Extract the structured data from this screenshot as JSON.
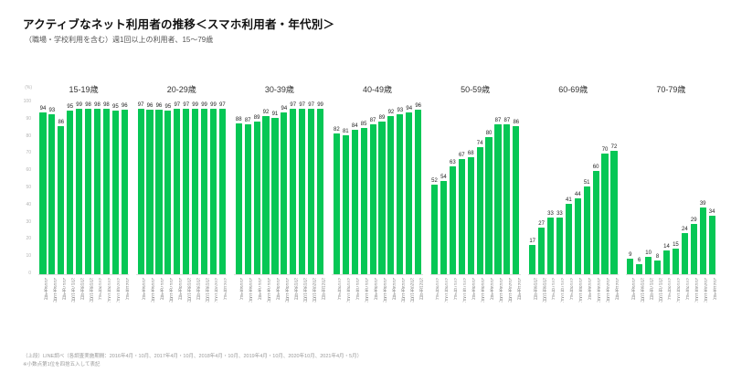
{
  "page": {
    "title": "アクティブなネット利用者の推移＜スマホ利用者・年代別＞",
    "subtitle": "（職場・学校利用を含む）週1回以上の利用者、15〜79歳",
    "footnote1": "（上段）LINE調べ（各調査実施期間：2016年4月・10月、2017年4月・10月、2018年4月・10月、2019年4月・10月、2020年10月、2021年4月・5月）",
    "footnote2": "※小数点第1位を四捨五入して表記"
  },
  "chart_data": {
    "type": "bar",
    "title": "アクティブなネット利用者の推移＜スマホ利用者・年代別＞",
    "subtitle": "（職場・学校利用を含む）週1回以上の利用者、15〜79歳",
    "unit_label": "(%)",
    "bar_color": "#06c755",
    "ylim": [
      0,
      100
    ],
    "yticks": [
      0,
      10,
      20,
      30,
      40,
      50,
      60,
      70,
      80,
      90,
      100
    ],
    "grid": false,
    "legend": "none",
    "x": [
      "2016年4月",
      "2016年10月",
      "2017年4月",
      "2017年10月",
      "2018年4月",
      "2018年10月",
      "2019年4月",
      "2019年10月",
      "2020年10月",
      "2021年4月"
    ],
    "groups": [
      {
        "label": "15-19歳",
        "values": [
          94,
          93,
          86,
          95,
          99,
          98,
          98,
          98,
          95,
          96
        ]
      },
      {
        "label": "20-29歳",
        "values": [
          97,
          96,
          96,
          95,
          97,
          97,
          99,
          99,
          99,
          97
        ]
      },
      {
        "label": "30-39歳",
        "values": [
          88,
          87,
          89,
          92,
          91,
          94,
          97,
          97,
          97,
          99
        ]
      },
      {
        "label": "40-49歳",
        "values": [
          82,
          81,
          84,
          85,
          87,
          89,
          92,
          93,
          94,
          96
        ]
      },
      {
        "label": "50-59歳",
        "values": [
          52,
          54,
          63,
          67,
          68,
          74,
          80,
          87,
          87,
          86
        ]
      },
      {
        "label": "60-69歳",
        "values": [
          17,
          27,
          33,
          33,
          41,
          44,
          51,
          60,
          70,
          72
        ]
      },
      {
        "label": "70-79歳",
        "values": [
          9,
          6,
          10,
          8,
          14,
          15,
          24,
          29,
          39,
          34
        ]
      }
    ]
  }
}
